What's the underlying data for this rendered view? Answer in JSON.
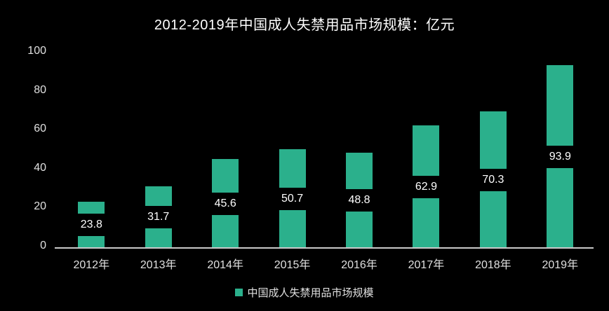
{
  "chart_data": {
    "type": "bar",
    "title": "2012-2019年中国成人失禁用品市场规模：亿元",
    "categories": [
      "2012年",
      "2013年",
      "2014年",
      "2015年",
      "2016年",
      "2017年",
      "2018年",
      "2019年"
    ],
    "series": [
      {
        "name": "中国成人失禁用品市场规模",
        "values": [
          23.8,
          31.7,
          45.6,
          50.7,
          48.8,
          62.9,
          70.3,
          93.9
        ]
      }
    ],
    "value_labels": [
      "23.8",
      "31.7",
      "45.6",
      "50.7",
      "48.8",
      "62.9",
      "70.3",
      "93.9"
    ],
    "yticks": [
      "0",
      "20",
      "40",
      "60",
      "80",
      "100"
    ],
    "ylim": [
      0,
      100
    ],
    "xlabel": "",
    "ylabel": "",
    "grid": "off",
    "legend_position": "bottom",
    "value_label_position": "inside-center"
  },
  "legend": {
    "label": "中国成人失禁用品市场规模"
  },
  "colors": {
    "background": "#000000",
    "bar": "#2bb08c",
    "axis_line": "#c9c9c9",
    "title_text": "#ffffff",
    "value_text": "#ffffff",
    "axis_label_text": "#e0e0e0",
    "legend_text": "#e0e0e0"
  }
}
